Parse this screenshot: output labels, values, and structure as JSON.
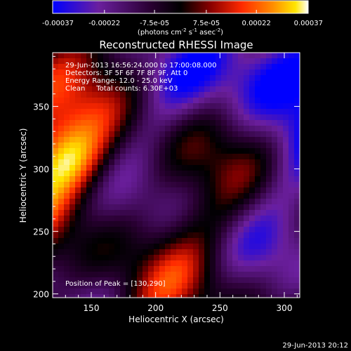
{
  "chart_data": {
    "type": "heatmap",
    "title": "Reconstructed RHESSI Image",
    "xlabel": "Heliocentric X (arcsec)",
    "ylabel": "Heliocentric Y (arcsec)",
    "xlim": [
      120,
      312
    ],
    "ylim": [
      197,
      393
    ],
    "x_ticks": [
      150,
      200,
      250,
      300
    ],
    "y_ticks": [
      200,
      250,
      300,
      350
    ],
    "x_tick_labels": [
      "150",
      "200",
      "250",
      "300"
    ],
    "y_tick_labels": [
      "200",
      "250",
      "300",
      "350"
    ],
    "colorbar": {
      "range": [
        -0.00037,
        0.00037
      ],
      "tick_values": [
        -0.00037,
        -0.00022,
        -7.5e-05,
        7.5e-05,
        0.00022,
        0.00037
      ],
      "tick_labels": [
        "-0.00037",
        "-0.00022",
        "-7.5e-05",
        "7.5e-05",
        "0.00022",
        "0.00037"
      ],
      "unit_label": "(photons cm-2 s-1 asec-2)",
      "colors": [
        "#0000ff",
        "#6b1f9e",
        "#2a0033",
        "#000000",
        "#8b0000",
        "#ff2a00",
        "#ff8c00",
        "#ffe600",
        "#ffffff"
      ]
    },
    "annotations": [
      "29-Jun-2013 16:56:24.000 to 17:00:08.000",
      "Detectors: 3F 5F 6F 7F 8F 9F, Att 0",
      "Energy Range: 12.0 - 25.0 keV",
      "Clean     Total counts: 6.30E+03"
    ],
    "peak_label": "Position of Peak = [130,290]",
    "peak_position": [
      130,
      290
    ],
    "grid": false
  },
  "footer": {
    "timestamp": "29-Jun-2013 20:12"
  }
}
